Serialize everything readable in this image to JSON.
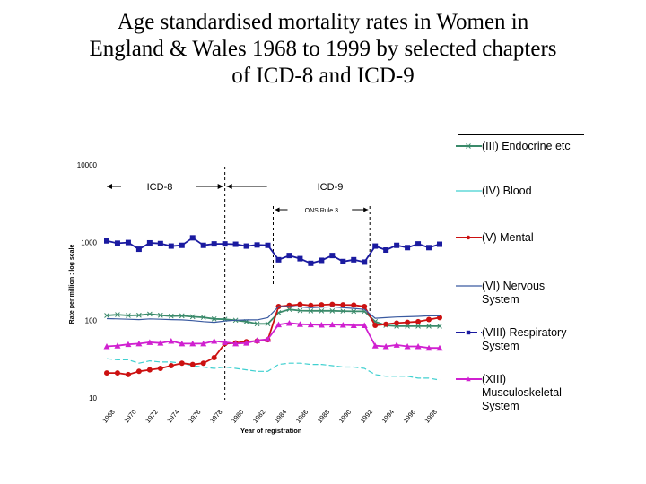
{
  "title_lines": [
    "Age standardised mortality rates in Women in",
    "England & Wales 1968 to 1999 by selected chapters",
    "of ICD-8 and ICD-9"
  ],
  "chart_data": {
    "type": "line",
    "title": "Age standardised mortality rates in Women in England & Wales 1968 to 1999 by selected chapters of ICD-8 and ICD-9",
    "xlabel": "Year of registration",
    "ylabel": "Rate per million : log scale",
    "yscale": "log",
    "ylim": [
      10,
      10000
    ],
    "xlim": [
      1968,
      1999
    ],
    "y_ticks": [
      "10",
      "100",
      "1000",
      "10000"
    ],
    "x_ticks": [
      "1968",
      "1970",
      "1972",
      "1974",
      "1976",
      "1978",
      "1980",
      "1982",
      "1984",
      "1986",
      "1988",
      "1990",
      "1992",
      "1994",
      "1996",
      "1998"
    ],
    "grid": false,
    "legend_position": "right",
    "x": [
      1968,
      1969,
      1970,
      1971,
      1972,
      1973,
      1974,
      1975,
      1976,
      1977,
      1978,
      1979,
      1980,
      1981,
      1982,
      1983,
      1984,
      1985,
      1986,
      1987,
      1988,
      1989,
      1990,
      1991,
      1992,
      1993,
      1994,
      1995,
      1996,
      1997,
      1998,
      1999
    ],
    "series": [
      {
        "name": "(III) Endocrine etc",
        "color": "#3a8a6a",
        "marker": "x",
        "values": [
          115,
          118,
          115,
          116,
          120,
          116,
          113,
          114,
          111,
          109,
          104,
          103,
          100,
          96,
          90,
          90,
          125,
          138,
          133,
          132,
          132,
          132,
          131,
          130,
          130,
          96,
          86,
          84,
          84,
          84,
          84,
          84
        ]
      },
      {
        "name": "(IV)   Blood",
        "color": "#40d0d0",
        "marker": "none",
        "dash": "6 3",
        "values": [
          32,
          31,
          31,
          28,
          30,
          29,
          29,
          28,
          26,
          25,
          24,
          25,
          24,
          23,
          22,
          22,
          27,
          28,
          28,
          27,
          27,
          26,
          25,
          25,
          24,
          20,
          19,
          19,
          19,
          18,
          18,
          17
        ]
      },
      {
        "name": "(V)   Mental",
        "color": "#cc1111",
        "marker": "circle",
        "values": [
          21,
          21,
          20,
          22,
          23,
          24,
          26,
          28,
          27,
          28,
          33,
          50,
          51,
          53,
          54,
          56,
          150,
          155,
          160,
          155,
          158,
          160,
          158,
          157,
          150,
          86,
          89,
          92,
          94,
          96,
          102,
          108
        ]
      },
      {
        "name": "(VI)  Nervous\nSystem",
        "color": "#3a5aa0",
        "marker": "none",
        "values": [
          105,
          104,
          103,
          102,
          104,
          103,
          102,
          101,
          99,
          96,
          94,
          98,
          100,
          101,
          101,
          108,
          150,
          150,
          148,
          145,
          147,
          149,
          145,
          142,
          138,
          106,
          108,
          110,
          111,
          112,
          114,
          114
        ]
      },
      {
        "name": "(VIII)  Respiratory\nSystem",
        "color": "#1a1aa0",
        "marker": "square",
        "values": [
          1050,
          980,
          1000,
          820,
          990,
          970,
          900,
          920,
          1150,
          920,
          960,
          960,
          950,
          900,
          930,
          920,
          600,
          680,
          620,
          540,
          590,
          680,
          570,
          600,
          560,
          900,
          800,
          920,
          860,
          960,
          860,
          950
        ]
      },
      {
        "name": "(XIII)\nMusculoskeletal\nSystem",
        "color": "#d020d0",
        "marker": "triangle",
        "values": [
          46,
          47,
          49,
          50,
          52,
          51,
          54,
          50,
          50,
          50,
          54,
          52,
          50,
          51,
          55,
          57,
          88,
          92,
          89,
          88,
          87,
          88,
          87,
          86,
          86,
          47,
          46,
          48,
          46,
          46,
          44,
          44
        ]
      }
    ],
    "annotations": [
      {
        "text": "ICD-8",
        "type": "bracket",
        "from": 1968,
        "to": 1979
      },
      {
        "text": "ICD-9",
        "type": "bracket",
        "from": 1979,
        "to": 1999
      },
      {
        "text": "ONS Rule 3",
        "type": "bracket",
        "from": 1983.5,
        "to": 1992.5
      },
      {
        "text": "",
        "type": "vline",
        "at": 1979
      }
    ]
  }
}
